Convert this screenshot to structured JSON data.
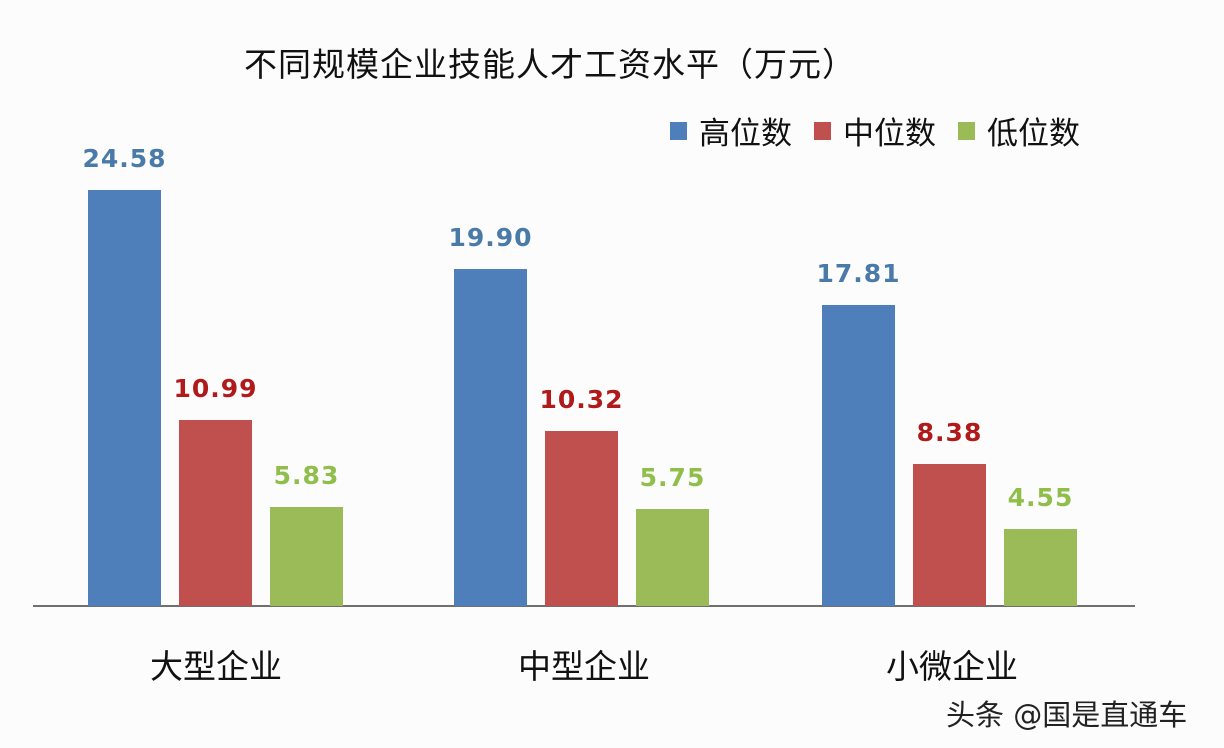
{
  "chart_data": {
    "type": "bar",
    "title": "不同规模企业技能人才工资水平（万元）",
    "categories": [
      "大型企业",
      "中型企业",
      "小微企业"
    ],
    "series": [
      {
        "name": "高位数",
        "color": "#4f7fba",
        "label_color": "#4a7aa8",
        "values": [
          24.58,
          19.9,
          17.81
        ],
        "labels": [
          "24.58",
          "19.90",
          "17.81"
        ]
      },
      {
        "name": "中位数",
        "color": "#c0504d",
        "label_color": "#b01a1a",
        "values": [
          10.99,
          10.32,
          8.38
        ],
        "labels": [
          "10.99",
          "10.32",
          "8.38"
        ]
      },
      {
        "name": "低位数",
        "color": "#9bbb59",
        "label_color": "#8fbf4a",
        "values": [
          5.83,
          5.75,
          4.55
        ],
        "labels": [
          "5.83",
          "5.75",
          "4.55"
        ]
      }
    ],
    "xlabel": "",
    "ylabel": "",
    "ylim": [
      0,
      25
    ],
    "grid": false,
    "legend_position": "top-right",
    "data_labels": true
  },
  "watermark": "头条 @国是直通车"
}
